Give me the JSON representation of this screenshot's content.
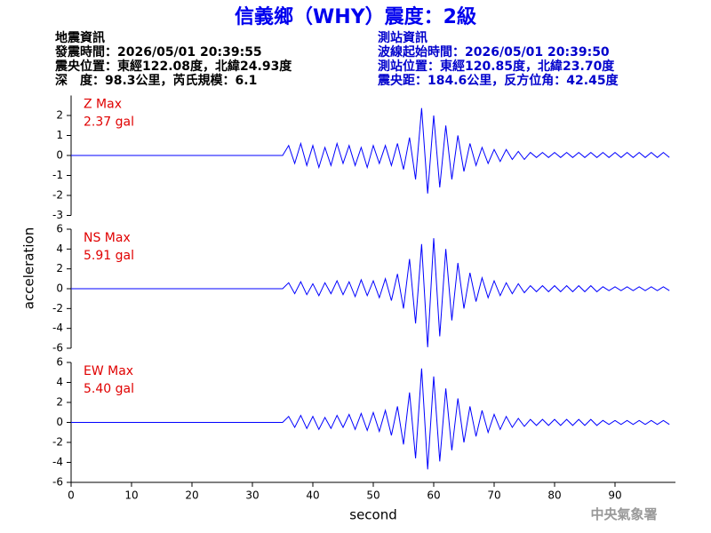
{
  "title": "信義鄉（WHY）震度：2級",
  "header": {
    "left": [
      "地震資訊",
      "發震時間：2026/05/01 20:39:55",
      "震央位置：東經122.08度，北緯24.93度",
      "深　度：98.3公里，芮氏規模：6.1"
    ],
    "right": [
      "測站資訊",
      "波線起始時間：2026/05/01 20:39:50",
      "測站位置：東經120.85度，北緯23.70度",
      "震央距：184.6公里，反方位角：42.45度"
    ]
  },
  "ylabel": "acceleration",
  "footer": "中央氣象署",
  "chart_data": [
    {
      "type": "line",
      "label": "Z Max",
      "max_label": "2.37 gal",
      "xlim": [
        0,
        100
      ],
      "ylim": [
        -3,
        3
      ],
      "yticks": [
        -3,
        -2,
        -1,
        0,
        1,
        2
      ],
      "x": [
        0,
        35,
        36,
        37,
        38,
        39,
        40,
        41,
        42,
        43,
        44,
        45,
        46,
        47,
        48,
        49,
        50,
        51,
        52,
        53,
        54,
        55,
        56,
        57,
        58,
        59,
        60,
        61,
        62,
        63,
        64,
        65,
        66,
        67,
        68,
        69,
        70,
        71,
        72,
        73,
        74,
        75,
        76,
        77,
        78,
        79,
        80,
        81,
        82,
        83,
        84,
        85,
        86,
        87,
        88,
        89,
        90,
        91,
        92,
        93,
        94,
        95,
        96,
        97,
        98,
        99
      ],
      "series": [
        {
          "color": "#0000ff",
          "values": [
            0,
            0,
            0.5,
            -0.4,
            0.6,
            -0.5,
            0.5,
            -0.6,
            0.4,
            -0.5,
            0.6,
            -0.4,
            0.5,
            -0.5,
            0.4,
            -0.6,
            0.5,
            -0.4,
            0.5,
            -0.5,
            0.6,
            -0.7,
            0.9,
            -1.2,
            2.37,
            -1.9,
            2.0,
            -1.6,
            1.5,
            -1.2,
            1.0,
            -0.8,
            0.6,
            -0.5,
            0.4,
            -0.4,
            0.3,
            -0.3,
            0.3,
            -0.2,
            0.2,
            -0.2,
            0.15,
            -0.1,
            0.15,
            -0.1,
            0.15,
            -0.1,
            0.15,
            -0.1,
            0.15,
            -0.1,
            0.15,
            -0.1,
            0.15,
            -0.1,
            0.15,
            -0.1,
            0.15,
            -0.1,
            0.15,
            -0.1,
            0.15,
            -0.1,
            0.15,
            -0.1
          ]
        }
      ]
    },
    {
      "type": "line",
      "label": "NS Max",
      "max_label": "5.91 gal",
      "xlim": [
        0,
        100
      ],
      "ylim": [
        -6,
        6
      ],
      "yticks": [
        -6,
        -4,
        -2,
        0,
        2,
        4,
        6
      ],
      "x": [
        0,
        35,
        36,
        37,
        38,
        39,
        40,
        41,
        42,
        43,
        44,
        45,
        46,
        47,
        48,
        49,
        50,
        51,
        52,
        53,
        54,
        55,
        56,
        57,
        58,
        59,
        60,
        61,
        62,
        63,
        64,
        65,
        66,
        67,
        68,
        69,
        70,
        71,
        72,
        73,
        74,
        75,
        76,
        77,
        78,
        79,
        80,
        81,
        82,
        83,
        84,
        85,
        86,
        87,
        88,
        89,
        90,
        91,
        92,
        93,
        94,
        95,
        96,
        97,
        98,
        99
      ],
      "series": [
        {
          "color": "#0000ff",
          "values": [
            0,
            0,
            0.6,
            -0.5,
            0.7,
            -0.6,
            0.5,
            -0.7,
            0.6,
            -0.5,
            0.8,
            -0.6,
            0.7,
            -0.8,
            0.9,
            -0.7,
            0.8,
            -0.9,
            1.0,
            -1.2,
            1.5,
            -2.0,
            3.0,
            -3.5,
            4.5,
            -5.9,
            5.1,
            -4.8,
            4.0,
            -3.2,
            2.6,
            -2.0,
            1.6,
            -1.3,
            1.1,
            -0.9,
            0.8,
            -0.7,
            0.6,
            -0.5,
            0.5,
            -0.4,
            0.3,
            -0.3,
            0.3,
            -0.3,
            0.3,
            -0.3,
            0.3,
            -0.3,
            0.3,
            -0.3,
            0.3,
            -0.3,
            0.2,
            -0.2,
            0.2,
            -0.2,
            0.2,
            -0.2,
            0.2,
            -0.2,
            0.2,
            -0.2,
            0.2,
            -0.2
          ]
        }
      ]
    },
    {
      "type": "line",
      "label": "EW Max",
      "max_label": "5.40 gal",
      "xlabel": "second",
      "xlim": [
        0,
        100
      ],
      "xticks": [
        0,
        10,
        20,
        30,
        40,
        50,
        60,
        70,
        80,
        90
      ],
      "ylim": [
        -6,
        6
      ],
      "yticks": [
        -6,
        -4,
        -2,
        0,
        2,
        4,
        6
      ],
      "x": [
        0,
        35,
        36,
        37,
        38,
        39,
        40,
        41,
        42,
        43,
        44,
        45,
        46,
        47,
        48,
        49,
        50,
        51,
        52,
        53,
        54,
        55,
        56,
        57,
        58,
        59,
        60,
        61,
        62,
        63,
        64,
        65,
        66,
        67,
        68,
        69,
        70,
        71,
        72,
        73,
        74,
        75,
        76,
        77,
        78,
        79,
        80,
        81,
        82,
        83,
        84,
        85,
        86,
        87,
        88,
        89,
        90,
        91,
        92,
        93,
        94,
        95,
        96,
        97,
        98,
        99
      ],
      "series": [
        {
          "color": "#0000ff",
          "values": [
            0,
            0,
            0.6,
            -0.5,
            0.7,
            -0.6,
            0.6,
            -0.7,
            0.5,
            -0.6,
            0.7,
            -0.5,
            0.8,
            -0.7,
            0.9,
            -0.8,
            1.0,
            -0.9,
            1.2,
            -1.3,
            1.6,
            -2.2,
            3.0,
            -3.6,
            5.4,
            -4.7,
            4.6,
            -3.9,
            3.4,
            -2.8,
            2.4,
            -2.0,
            1.6,
            -1.4,
            1.2,
            -1.0,
            0.8,
            -0.7,
            0.6,
            -0.5,
            0.4,
            -0.4,
            0.3,
            -0.3,
            0.3,
            -0.3,
            0.3,
            -0.3,
            0.3,
            -0.3,
            0.3,
            -0.3,
            0.3,
            -0.3,
            0.2,
            -0.2,
            0.2,
            -0.2,
            0.2,
            -0.2,
            0.2,
            -0.2,
            0.2,
            -0.2,
            0.2,
            -0.2
          ]
        }
      ]
    }
  ]
}
